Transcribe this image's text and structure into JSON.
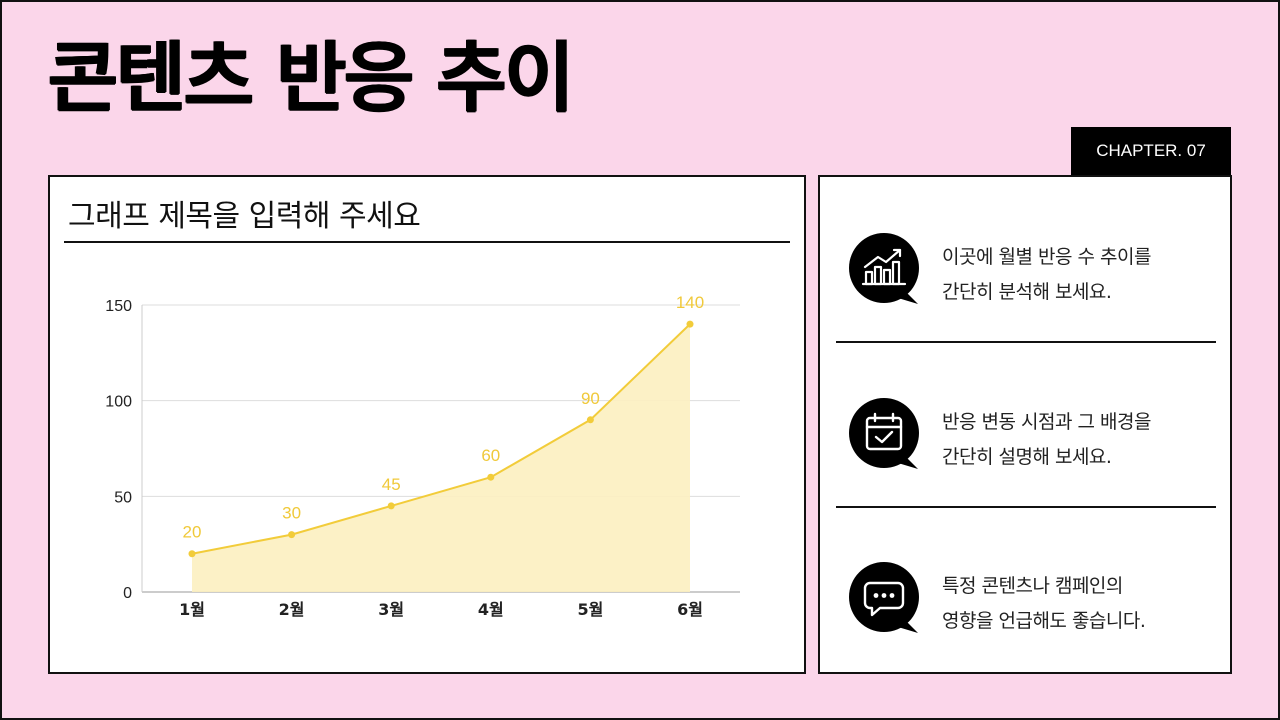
{
  "slide": {
    "title": "콘텐츠 반응 추이",
    "chapter": "CHAPTER. 07"
  },
  "chart_card": {
    "title": "그래프 제목을 입력해 주세요"
  },
  "chart_data": {
    "type": "area",
    "title": "그래프 제목을 입력해 주세요",
    "categories": [
      "1월",
      "2월",
      "3월",
      "4월",
      "5월",
      "6월"
    ],
    "series": [
      {
        "values": [
          20,
          30,
          45,
          60,
          90,
          140
        ]
      }
    ],
    "ylim": [
      0,
      150
    ],
    "yticks": [
      0,
      50,
      100,
      150
    ],
    "grid": true,
    "data_labels": true,
    "colors": {
      "line": "#f2cc3a",
      "fill": "#fcefc0",
      "label": "#f0c93a",
      "grid": "#dddddd"
    }
  },
  "info": {
    "items": [
      {
        "icon": "bar-chart-growth-icon",
        "lines": [
          "이곳에 월별 반응 수 추이를",
          "간단히 분석해 보세요."
        ]
      },
      {
        "icon": "calendar-check-icon",
        "lines": [
          "반응 변동 시점과 그 배경을",
          "간단히 설명해 보세요."
        ]
      },
      {
        "icon": "chat-bubble-dots-icon",
        "lines": [
          "특정 콘텐츠나 캠페인의",
          "영향을 언급해도 좋습니다."
        ]
      }
    ]
  },
  "colors": {
    "background": "#fbd6ea",
    "accent": "#000000",
    "chart": "#f2cc3a"
  }
}
